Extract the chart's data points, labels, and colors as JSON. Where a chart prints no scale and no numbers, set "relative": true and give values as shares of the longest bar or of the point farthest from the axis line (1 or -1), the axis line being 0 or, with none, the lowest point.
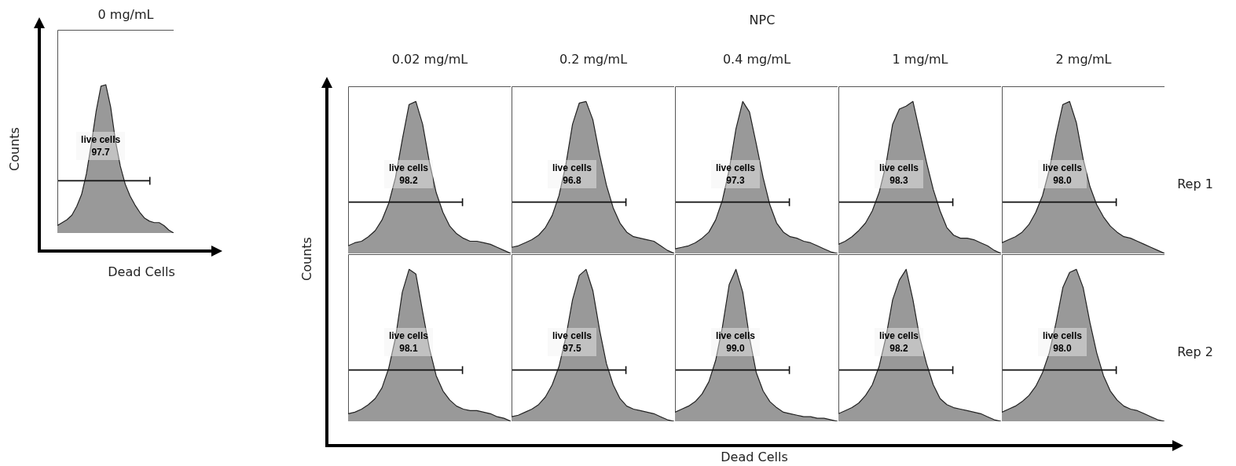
{
  "chart_data": [
    {
      "type": "area",
      "relative": true,
      "title": "0 mg/mL",
      "xlabel": "Dead Cells",
      "ylabel": "Counts",
      "categories": [
        null,
        null,
        null,
        null,
        null,
        null,
        null,
        null,
        null,
        null,
        null,
        null,
        null,
        null,
        null,
        null,
        null,
        null,
        null,
        null,
        null,
        null,
        null,
        null,
        null
      ],
      "values": [
        0.05,
        0.07,
        0.09,
        0.12,
        0.18,
        0.26,
        0.4,
        0.6,
        0.82,
        0.99,
        1.0,
        0.85,
        0.62,
        0.45,
        0.33,
        0.25,
        0.19,
        0.14,
        0.1,
        0.08,
        0.07,
        0.07,
        0.05,
        0.02,
        0.0
      ],
      "color": "#999999",
      "annotations": [
        "live cells",
        "97.7"
      ]
    },
    {
      "type": "area",
      "relative": true,
      "title": "0.02 mg/mL",
      "ylabel": "Counts",
      "categories": [
        null,
        null,
        null,
        null,
        null,
        null,
        null,
        null,
        null,
        null,
        null,
        null,
        null,
        null,
        null,
        null,
        null,
        null,
        null,
        null,
        null,
        null,
        null,
        null,
        null
      ],
      "values": [
        0.05,
        0.07,
        0.08,
        0.11,
        0.15,
        0.22,
        0.33,
        0.5,
        0.75,
        0.98,
        1.0,
        0.85,
        0.6,
        0.4,
        0.27,
        0.18,
        0.13,
        0.1,
        0.08,
        0.08,
        0.07,
        0.06,
        0.04,
        0.02,
        0.0
      ],
      "color": "#999999",
      "annotations": [
        "live cells",
        "98.2"
      ]
    },
    {
      "type": "area",
      "relative": true,
      "title": "0.2 mg/mL",
      "categories": [
        null,
        null,
        null,
        null,
        null,
        null,
        null,
        null,
        null,
        null,
        null,
        null,
        null,
        null,
        null,
        null,
        null,
        null,
        null,
        null,
        null,
        null,
        null,
        null,
        null
      ],
      "values": [
        0.04,
        0.05,
        0.07,
        0.09,
        0.12,
        0.17,
        0.25,
        0.38,
        0.58,
        0.85,
        0.99,
        1.0,
        0.88,
        0.65,
        0.45,
        0.3,
        0.2,
        0.14,
        0.11,
        0.1,
        0.09,
        0.08,
        0.05,
        0.02,
        0.0
      ],
      "color": "#999999",
      "annotations": [
        "live cells",
        "96.8"
      ]
    },
    {
      "type": "area",
      "relative": true,
      "title": "0.4 mg/mL",
      "subtitle": "NPC",
      "categories": [
        null,
        null,
        null,
        null,
        null,
        null,
        null,
        null,
        null,
        null,
        null,
        null,
        null,
        null,
        null,
        null,
        null,
        null,
        null,
        null,
        null,
        null,
        null,
        null,
        null
      ],
      "values": [
        0.03,
        0.04,
        0.05,
        0.07,
        0.1,
        0.14,
        0.22,
        0.35,
        0.55,
        0.82,
        1.0,
        0.93,
        0.72,
        0.5,
        0.32,
        0.2,
        0.14,
        0.11,
        0.1,
        0.08,
        0.07,
        0.05,
        0.03,
        0.01,
        0.0
      ],
      "color": "#999999",
      "annotations": [
        "live cells",
        "97.3"
      ]
    },
    {
      "type": "area",
      "relative": true,
      "title": "1 mg/mL",
      "categories": [
        null,
        null,
        null,
        null,
        null,
        null,
        null,
        null,
        null,
        null,
        null,
        null,
        null,
        null,
        null,
        null,
        null,
        null,
        null,
        null,
        null,
        null,
        null,
        null,
        null
      ],
      "values": [
        0.06,
        0.08,
        0.11,
        0.15,
        0.2,
        0.28,
        0.4,
        0.58,
        0.85,
        0.95,
        0.97,
        1.0,
        0.8,
        0.6,
        0.42,
        0.28,
        0.17,
        0.12,
        0.1,
        0.1,
        0.09,
        0.07,
        0.05,
        0.02,
        0.0
      ],
      "color": "#999999",
      "annotations": [
        "live cells",
        "98.3"
      ]
    },
    {
      "type": "area",
      "relative": true,
      "title": "2 mg/mL",
      "y2label": "Rep 1",
      "categories": [
        null,
        null,
        null,
        null,
        null,
        null,
        null,
        null,
        null,
        null,
        null,
        null,
        null,
        null,
        null,
        null,
        null,
        null,
        null,
        null,
        null,
        null,
        null,
        null,
        null
      ],
      "values": [
        0.07,
        0.09,
        0.11,
        0.14,
        0.19,
        0.27,
        0.38,
        0.55,
        0.78,
        0.98,
        1.0,
        0.86,
        0.62,
        0.44,
        0.32,
        0.24,
        0.18,
        0.14,
        0.11,
        0.1,
        0.08,
        0.06,
        0.04,
        0.02,
        0.0
      ],
      "color": "#999999",
      "annotations": [
        "live cells",
        "98.0"
      ]
    },
    {
      "type": "area",
      "relative": true,
      "categories": [
        null,
        null,
        null,
        null,
        null,
        null,
        null,
        null,
        null,
        null,
        null,
        null,
        null,
        null,
        null,
        null,
        null,
        null,
        null,
        null,
        null,
        null,
        null,
        null,
        null
      ],
      "values": [
        0.05,
        0.06,
        0.08,
        0.11,
        0.15,
        0.22,
        0.35,
        0.55,
        0.85,
        1.0,
        0.97,
        0.72,
        0.48,
        0.3,
        0.2,
        0.14,
        0.1,
        0.08,
        0.07,
        0.07,
        0.06,
        0.05,
        0.03,
        0.02,
        0.0
      ],
      "color": "#999999",
      "annotations": [
        "live cells",
        "98.1"
      ]
    },
    {
      "type": "area",
      "relative": true,
      "categories": [
        null,
        null,
        null,
        null,
        null,
        null,
        null,
        null,
        null,
        null,
        null,
        null,
        null,
        null,
        null,
        null,
        null,
        null,
        null,
        null,
        null,
        null,
        null,
        null,
        null
      ],
      "values": [
        0.03,
        0.04,
        0.06,
        0.08,
        0.11,
        0.16,
        0.24,
        0.36,
        0.55,
        0.8,
        0.96,
        1.0,
        0.86,
        0.6,
        0.38,
        0.24,
        0.15,
        0.1,
        0.08,
        0.07,
        0.06,
        0.05,
        0.03,
        0.01,
        0.0
      ],
      "color": "#999999",
      "annotations": [
        "live cells",
        "97.5"
      ]
    },
    {
      "type": "area",
      "relative": true,
      "xlabel": "Dead Cells",
      "categories": [
        null,
        null,
        null,
        null,
        null,
        null,
        null,
        null,
        null,
        null,
        null,
        null,
        null,
        null,
        null,
        null,
        null,
        null,
        null,
        null,
        null,
        null,
        null,
        null,
        null
      ],
      "values": [
        0.06,
        0.08,
        0.1,
        0.13,
        0.18,
        0.26,
        0.4,
        0.62,
        0.9,
        1.0,
        0.85,
        0.55,
        0.32,
        0.2,
        0.13,
        0.09,
        0.06,
        0.05,
        0.04,
        0.03,
        0.03,
        0.02,
        0.02,
        0.01,
        0.0
      ],
      "color": "#999999",
      "annotations": [
        "live cells",
        "99.0"
      ]
    },
    {
      "type": "area",
      "relative": true,
      "categories": [
        null,
        null,
        null,
        null,
        null,
        null,
        null,
        null,
        null,
        null,
        null,
        null,
        null,
        null,
        null,
        null,
        null,
        null,
        null,
        null,
        null,
        null,
        null,
        null,
        null
      ],
      "values": [
        0.05,
        0.07,
        0.09,
        0.12,
        0.17,
        0.24,
        0.36,
        0.55,
        0.8,
        0.93,
        1.0,
        0.8,
        0.55,
        0.38,
        0.24,
        0.15,
        0.11,
        0.09,
        0.08,
        0.07,
        0.06,
        0.05,
        0.03,
        0.01,
        0.0
      ],
      "color": "#999999",
      "annotations": [
        "live cells",
        "98.2"
      ]
    },
    {
      "type": "area",
      "relative": true,
      "y2label": "Rep 2",
      "categories": [
        null,
        null,
        null,
        null,
        null,
        null,
        null,
        null,
        null,
        null,
        null,
        null,
        null,
        null,
        null,
        null,
        null,
        null,
        null,
        null,
        null,
        null,
        null,
        null,
        null
      ],
      "values": [
        0.06,
        0.08,
        0.1,
        0.13,
        0.17,
        0.23,
        0.32,
        0.45,
        0.65,
        0.88,
        0.98,
        1.0,
        0.88,
        0.65,
        0.45,
        0.3,
        0.2,
        0.14,
        0.1,
        0.08,
        0.07,
        0.05,
        0.03,
        0.01,
        0.0
      ],
      "color": "#999999",
      "annotations": [
        "live cells",
        "98.0"
      ]
    }
  ]
}
